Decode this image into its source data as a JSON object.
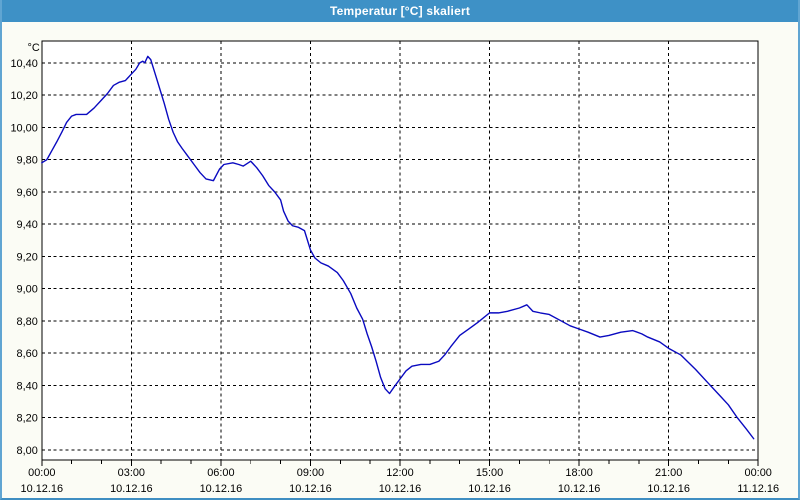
{
  "window": {
    "title": "Temperatur [°C] skaliert"
  },
  "colors": {
    "titlebar": "#3e91c6",
    "window_border": "#60a5d2",
    "content_bg": "#fbfcf5",
    "plot_bg": "#ffffff",
    "grid": "#000000",
    "line": "#0a0ac0",
    "label": "#000000"
  },
  "chart_data": {
    "type": "line",
    "title": "Temperatur [°C] skaliert",
    "unit_label": "°C",
    "grid": "dashed",
    "legend": "none",
    "y_axis": {
      "min": 8.0,
      "max": 10.4,
      "step": 0.2,
      "ylim": [
        7.94,
        10.54
      ],
      "tick_labels": [
        "10,40",
        "10,20",
        "10,00",
        "9,80",
        "9,60",
        "9,40",
        "9,20",
        "9,00",
        "8,80",
        "8,60",
        "8,40",
        "8,20",
        "8,00"
      ]
    },
    "x_axis": {
      "hours_span": 24,
      "major_tick_hours": 3,
      "minor_tick_hours": 1,
      "ticks": [
        {
          "time": "00:00",
          "date": "10.12.16"
        },
        {
          "time": "03:00",
          "date": "10.12.16"
        },
        {
          "time": "06:00",
          "date": "10.12.16"
        },
        {
          "time": "09:00",
          "date": "10.12.16"
        },
        {
          "time": "12:00",
          "date": "10.12.16"
        },
        {
          "time": "15:00",
          "date": "10.12.16"
        },
        {
          "time": "18:00",
          "date": "10.12.16"
        },
        {
          "time": "21:00",
          "date": "10.12.16"
        },
        {
          "time": "00:00",
          "date": "11.12.16"
        }
      ]
    },
    "series": [
      {
        "name": "Temperatur",
        "color": "#0a0ac0",
        "points": [
          [
            0.0,
            9.78
          ],
          [
            0.17,
            9.8
          ],
          [
            0.35,
            9.86
          ],
          [
            0.5,
            9.91
          ],
          [
            0.67,
            9.97
          ],
          [
            0.83,
            10.03
          ],
          [
            1.0,
            10.07
          ],
          [
            1.15,
            10.08
          ],
          [
            1.5,
            10.08
          ],
          [
            1.75,
            10.12
          ],
          [
            2.0,
            10.17
          ],
          [
            2.2,
            10.21
          ],
          [
            2.4,
            10.26
          ],
          [
            2.6,
            10.28
          ],
          [
            2.8,
            10.29
          ],
          [
            3.0,
            10.33
          ],
          [
            3.15,
            10.36
          ],
          [
            3.28,
            10.4
          ],
          [
            3.38,
            10.41
          ],
          [
            3.45,
            10.4
          ],
          [
            3.55,
            10.44
          ],
          [
            3.65,
            10.42
          ],
          [
            3.8,
            10.33
          ],
          [
            3.95,
            10.24
          ],
          [
            4.1,
            10.15
          ],
          [
            4.25,
            10.05
          ],
          [
            4.4,
            9.97
          ],
          [
            4.55,
            9.91
          ],
          [
            4.7,
            9.87
          ],
          [
            4.9,
            9.82
          ],
          [
            5.1,
            9.77
          ],
          [
            5.3,
            9.72
          ],
          [
            5.5,
            9.68
          ],
          [
            5.75,
            9.67
          ],
          [
            5.95,
            9.74
          ],
          [
            6.1,
            9.77
          ],
          [
            6.4,
            9.78
          ],
          [
            6.6,
            9.77
          ],
          [
            6.75,
            9.76
          ],
          [
            7.0,
            9.79
          ],
          [
            7.2,
            9.75
          ],
          [
            7.4,
            9.7
          ],
          [
            7.6,
            9.64
          ],
          [
            7.8,
            9.6
          ],
          [
            8.0,
            9.55
          ],
          [
            8.1,
            9.48
          ],
          [
            8.25,
            9.42
          ],
          [
            8.4,
            9.39
          ],
          [
            8.6,
            9.38
          ],
          [
            8.8,
            9.36
          ],
          [
            9.0,
            9.24
          ],
          [
            9.15,
            9.19
          ],
          [
            9.35,
            9.16
          ],
          [
            9.6,
            9.14
          ],
          [
            9.9,
            9.1
          ],
          [
            10.1,
            9.05
          ],
          [
            10.35,
            8.97
          ],
          [
            10.55,
            8.88
          ],
          [
            10.75,
            8.81
          ],
          [
            10.9,
            8.72
          ],
          [
            11.05,
            8.64
          ],
          [
            11.2,
            8.55
          ],
          [
            11.35,
            8.45
          ],
          [
            11.5,
            8.38
          ],
          [
            11.65,
            8.35
          ],
          [
            11.8,
            8.39
          ],
          [
            12.0,
            8.44
          ],
          [
            12.2,
            8.49
          ],
          [
            12.4,
            8.52
          ],
          [
            12.7,
            8.53
          ],
          [
            13.0,
            8.53
          ],
          [
            13.3,
            8.55
          ],
          [
            13.5,
            8.59
          ],
          [
            13.7,
            8.64
          ],
          [
            14.0,
            8.71
          ],
          [
            14.3,
            8.75
          ],
          [
            14.6,
            8.79
          ],
          [
            15.0,
            8.85
          ],
          [
            15.3,
            8.85
          ],
          [
            15.6,
            8.86
          ],
          [
            16.0,
            8.88
          ],
          [
            16.25,
            8.9
          ],
          [
            16.45,
            8.86
          ],
          [
            16.7,
            8.85
          ],
          [
            17.0,
            8.84
          ],
          [
            17.4,
            8.8
          ],
          [
            17.7,
            8.77
          ],
          [
            18.0,
            8.75
          ],
          [
            18.3,
            8.73
          ],
          [
            18.7,
            8.7
          ],
          [
            19.0,
            8.71
          ],
          [
            19.4,
            8.73
          ],
          [
            19.8,
            8.74
          ],
          [
            20.1,
            8.72
          ],
          [
            20.3,
            8.7
          ],
          [
            20.7,
            8.67
          ],
          [
            21.0,
            8.63
          ],
          [
            21.4,
            8.59
          ],
          [
            21.9,
            8.5
          ],
          [
            22.3,
            8.42
          ],
          [
            22.7,
            8.34
          ],
          [
            23.0,
            8.28
          ],
          [
            23.3,
            8.2
          ],
          [
            23.6,
            8.13
          ],
          [
            23.85,
            8.07
          ]
        ]
      }
    ]
  }
}
